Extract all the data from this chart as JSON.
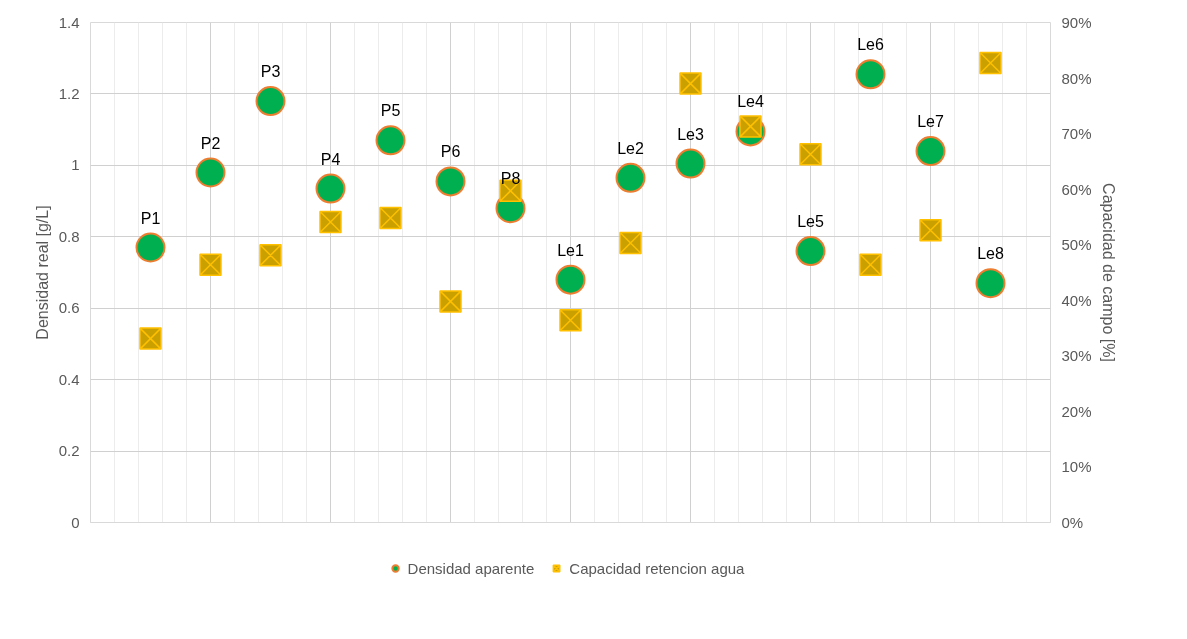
{
  "chart_data": {
    "type": "scatter",
    "ylabel": "Densidad real [g/L]",
    "y2label": "Capacidad de campo [%]",
    "categories": [
      null,
      null,
      null,
      null,
      null,
      null,
      null,
      null,
      null,
      null,
      null,
      null,
      null,
      null,
      null
    ],
    "ylim": [
      0,
      1.4
    ],
    "yticks": [
      0,
      0.2,
      0.4,
      0.6,
      0.8,
      1,
      1.2,
      1.4
    ],
    "y2lim": [
      0,
      90
    ],
    "y2ticks": [
      {
        "value": 0,
        "label": "0%"
      },
      {
        "value": 10,
        "label": "10%"
      },
      {
        "value": 20,
        "label": "20%"
      },
      {
        "value": 30,
        "label": "30%"
      },
      {
        "value": 40,
        "label": "40%"
      },
      {
        "value": 50,
        "label": "50%"
      },
      {
        "value": 60,
        "label": "60%"
      },
      {
        "value": 70,
        "label": "70%"
      },
      {
        "value": 80,
        "label": "80%"
      },
      {
        "value": 90,
        "label": "90%"
      }
    ],
    "series": [
      {
        "name": "Densidad aparente",
        "color": "#00b050",
        "marker": "circle",
        "values": [
          0.77,
          0.98,
          1.18,
          0.935,
          1.07,
          0.955,
          0.88,
          0.68,
          0.965,
          1.005,
          1.095,
          0.76,
          1.255,
          1.04,
          0.67
        ]
      },
      {
        "name": "Capacidad retencion agua",
        "color": "#c9a000",
        "marker": "square",
        "axis": "y2",
        "values": [
          33.1,
          46.4,
          48.1,
          54.1,
          54.8,
          39.8,
          59.7,
          36.4,
          50.3,
          79.0,
          71.3,
          66.3,
          46.4,
          52.6,
          82.7
        ]
      }
    ],
    "annotations": [
      {
        "text": "P1",
        "y": 0.77
      },
      {
        "text": "P2",
        "y": 0.98
      },
      {
        "text": "P3",
        "y": 1.18
      },
      {
        "text": "P4",
        "y": 0.935
      },
      {
        "text": "P5",
        "y": 1.07
      },
      {
        "text": "P6",
        "y": 0.955
      },
      {
        "text": "P8",
        "y": 0.88
      },
      {
        "text": "Le1",
        "y": 0.68
      },
      {
        "text": "Le2",
        "y": 0.965
      },
      {
        "text": "Le3",
        "y": 1.005
      },
      {
        "text": "Le4",
        "y": 1.095
      },
      {
        "text": "Le5",
        "y": 0.76
      },
      {
        "text": "Le6",
        "y": 1.255
      },
      {
        "text": "Le7",
        "y": 1.04
      },
      {
        "text": "Le8",
        "y": 0.67
      }
    ],
    "grid": true,
    "legend": "bottom"
  }
}
